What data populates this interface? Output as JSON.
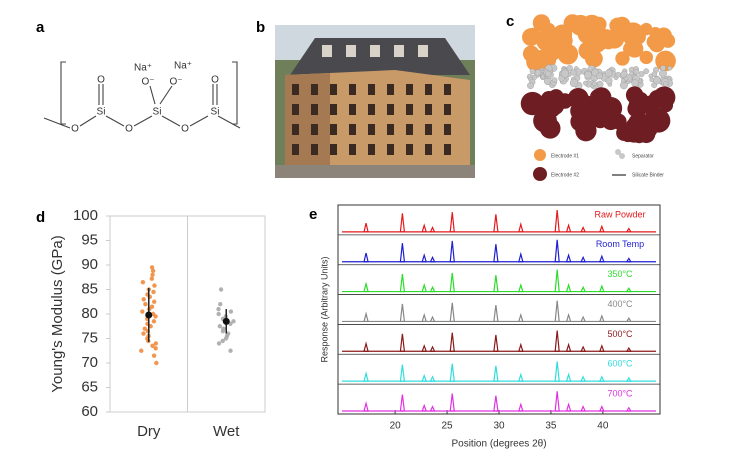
{
  "panel_labels": [
    "a",
    "b",
    "c",
    "d",
    "e"
  ],
  "structure": {
    "si": "Si",
    "o": "O",
    "o_minus": "O⁻",
    "na_plus": "Na⁺"
  },
  "schematic_legend": [
    "Electrode #1",
    "Separator",
    "Electrode #2",
    "Silicate Binder"
  ],
  "chart_data": [
    {
      "type": "strip",
      "ylabel": "Young's Modulus (GPa)",
      "categories": [
        "Dry",
        "Wet"
      ],
      "colors": [
        "#f08a3c",
        "#a8a8a8"
      ],
      "values": [
        [
          89.5,
          88.8,
          88,
          87.2,
          86.5,
          85.8,
          85,
          84.5,
          84,
          83.5,
          83,
          82.5,
          82,
          81.5,
          81,
          80.5,
          80,
          79.5,
          79,
          78.5,
          78,
          77.5,
          77,
          76.5,
          76,
          75.5,
          75,
          74.5,
          74,
          73.5,
          73,
          72.5,
          71.5,
          70
        ],
        [
          85,
          82,
          81,
          80.5,
          80,
          79.5,
          79,
          78.5,
          78,
          77.5,
          77,
          76.5,
          76,
          75.5,
          75,
          74.5,
          74,
          72.5
        ]
      ],
      "means": [
        79.8,
        78.5
      ],
      "errors": [
        5.5,
        2.5
      ],
      "ylim": [
        60,
        100
      ],
      "yticks": [
        60,
        65,
        70,
        75,
        80,
        85,
        90,
        95,
        100
      ]
    },
    {
      "type": "stacked-spectra",
      "xlabel": "Position (degrees 2θ)",
      "ylabel": "Response (Arbitrary Units)",
      "xlim": [
        14.5,
        45.5
      ],
      "xticks": [
        20,
        25,
        30,
        35,
        40
      ],
      "positions": [
        17.2,
        20.7,
        22.8,
        23.6,
        25.5,
        29.7,
        32.1,
        35.6,
        36.7,
        38.1,
        39.9,
        42.5
      ],
      "series": [
        {
          "name": "Raw Powder",
          "color": "#e31a1c",
          "values": [
            0.4,
            0.85,
            0.3,
            0.2,
            0.9,
            0.8,
            0.35,
            1.0,
            0.3,
            0.2,
            0.25,
            0.15
          ]
        },
        {
          "name": "Room Temp",
          "color": "#1f1fd0",
          "values": [
            0.4,
            0.85,
            0.3,
            0.2,
            0.95,
            0.8,
            0.35,
            1.0,
            0.3,
            0.2,
            0.25,
            0.15
          ]
        },
        {
          "name": "350°C",
          "color": "#2ddc2d",
          "values": [
            0.35,
            0.8,
            0.3,
            0.2,
            0.85,
            0.75,
            0.3,
            1.0,
            0.3,
            0.2,
            0.25,
            0.15
          ]
        },
        {
          "name": "400°C",
          "color": "#888888",
          "values": [
            0.35,
            0.8,
            0.3,
            0.2,
            0.85,
            0.75,
            0.3,
            0.95,
            0.3,
            0.2,
            0.25,
            0.15
          ]
        },
        {
          "name": "500°C",
          "color": "#8b1a1a",
          "values": [
            0.35,
            0.8,
            0.25,
            0.2,
            0.85,
            0.75,
            0.3,
            0.95,
            0.3,
            0.2,
            0.25,
            0.15
          ]
        },
        {
          "name": "600°C",
          "color": "#33dddd",
          "values": [
            0.35,
            0.75,
            0.25,
            0.2,
            0.8,
            0.7,
            0.3,
            0.9,
            0.3,
            0.2,
            0.2,
            0.15
          ]
        },
        {
          "name": "700°C",
          "color": "#e033e0",
          "values": [
            0.35,
            0.75,
            0.25,
            0.2,
            0.8,
            0.7,
            0.3,
            0.9,
            0.3,
            0.2,
            0.2,
            0.15
          ]
        }
      ]
    }
  ]
}
